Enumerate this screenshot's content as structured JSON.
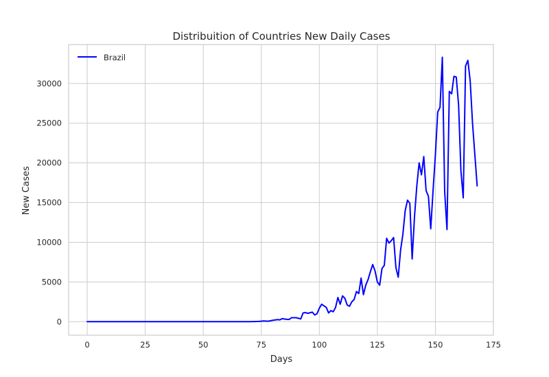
{
  "chart_data": {
    "type": "line",
    "title": "Distribuition of Countries New Daily Cases",
    "xlabel": "Days",
    "ylabel": "New Cases",
    "xlim": [
      -8,
      175
    ],
    "ylim": [
      -1700,
      34900
    ],
    "xticks": [
      0,
      25,
      50,
      75,
      100,
      125,
      150,
      175
    ],
    "yticks": [
      0,
      5000,
      10000,
      15000,
      20000,
      25000,
      30000
    ],
    "grid": true,
    "legend_position": "top-left",
    "colors": {
      "series": "#0000ff",
      "grid": "#cccccc",
      "frame": "#cccccc",
      "background": "#ffffff"
    },
    "series": [
      {
        "name": "Brazil",
        "points": [
          [
            0,
            0
          ],
          [
            10,
            0
          ],
          [
            20,
            0
          ],
          [
            30,
            0
          ],
          [
            40,
            0
          ],
          [
            50,
            0
          ],
          [
            60,
            0
          ],
          [
            65,
            0
          ],
          [
            70,
            10
          ],
          [
            72,
            20
          ],
          [
            74,
            40
          ],
          [
            76,
            90
          ],
          [
            78,
            60
          ],
          [
            80,
            180
          ],
          [
            82,
            260
          ],
          [
            83,
            230
          ],
          [
            84,
            380
          ],
          [
            86,
            300
          ],
          [
            87,
            280
          ],
          [
            88,
            500
          ],
          [
            90,
            500
          ],
          [
            92,
            350
          ],
          [
            93,
            1100
          ],
          [
            94,
            1150
          ],
          [
            95,
            1050
          ],
          [
            97,
            1200
          ],
          [
            98,
            850
          ],
          [
            99,
            1000
          ],
          [
            100,
            1700
          ],
          [
            101,
            2200
          ],
          [
            102,
            2000
          ],
          [
            103,
            1800
          ],
          [
            104,
            1100
          ],
          [
            105,
            1400
          ],
          [
            106,
            1250
          ],
          [
            107,
            1800
          ],
          [
            108,
            3050
          ],
          [
            109,
            2200
          ],
          [
            110,
            3250
          ],
          [
            111,
            2950
          ],
          [
            112,
            2100
          ],
          [
            113,
            1950
          ],
          [
            114,
            2500
          ],
          [
            115,
            2800
          ],
          [
            116,
            3800
          ],
          [
            117,
            3550
          ],
          [
            118,
            5500
          ],
          [
            119,
            3400
          ],
          [
            120,
            4600
          ],
          [
            121,
            5300
          ],
          [
            122,
            6300
          ],
          [
            123,
            7200
          ],
          [
            124,
            6400
          ],
          [
            125,
            5000
          ],
          [
            126,
            4600
          ],
          [
            127,
            6700
          ],
          [
            128,
            7100
          ],
          [
            129,
            10500
          ],
          [
            130,
            9900
          ],
          [
            131,
            10200
          ],
          [
            132,
            10600
          ],
          [
            133,
            6800
          ],
          [
            134,
            5600
          ],
          [
            135,
            9000
          ],
          [
            136,
            11000
          ],
          [
            137,
            14000
          ],
          [
            138,
            15300
          ],
          [
            139,
            14900
          ],
          [
            140,
            7900
          ],
          [
            141,
            13200
          ],
          [
            142,
            17100
          ],
          [
            143,
            20000
          ],
          [
            144,
            18500
          ],
          [
            145,
            20800
          ],
          [
            146,
            16500
          ],
          [
            147,
            15800
          ],
          [
            148,
            11700
          ],
          [
            149,
            16500
          ],
          [
            150,
            21000
          ],
          [
            151,
            26400
          ],
          [
            152,
            27000
          ],
          [
            153,
            33300
          ],
          [
            154,
            16400
          ],
          [
            155,
            11600
          ],
          [
            156,
            29000
          ],
          [
            157,
            28700
          ],
          [
            158,
            30900
          ],
          [
            159,
            30800
          ],
          [
            160,
            27300
          ],
          [
            161,
            19000
          ],
          [
            162,
            15600
          ],
          [
            163,
            32200
          ],
          [
            164,
            32900
          ],
          [
            165,
            30300
          ],
          [
            166,
            25000
          ],
          [
            168,
            17100
          ]
        ]
      }
    ]
  }
}
